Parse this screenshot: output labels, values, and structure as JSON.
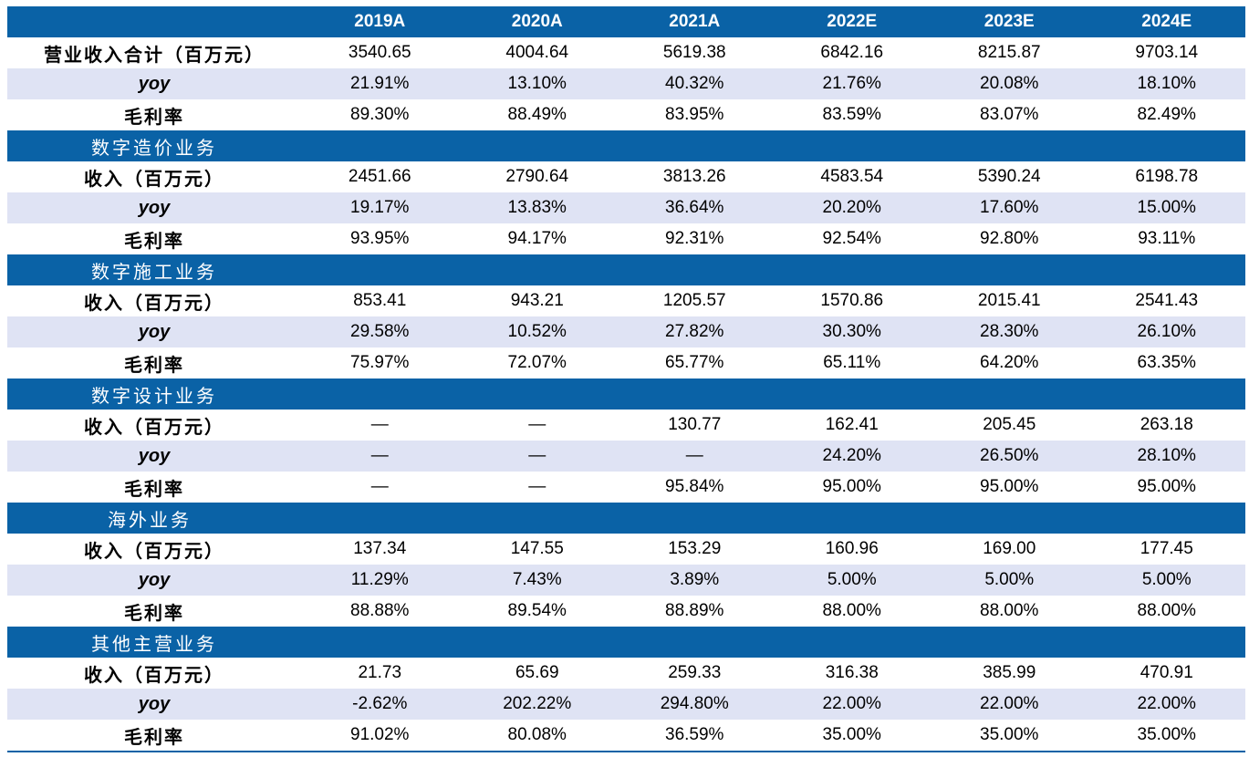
{
  "header": {
    "columns": [
      "",
      "2019A",
      "2020A",
      "2021A",
      "2022E",
      "2023E",
      "2024E"
    ]
  },
  "total": {
    "rows": [
      {
        "label": "营业收入合计（百万元）",
        "values": [
          "3540.65",
          "4004.64",
          "5619.38",
          "6842.16",
          "8215.87",
          "9703.14"
        ]
      },
      {
        "label": "yoy",
        "values": [
          "21.91%",
          "13.10%",
          "40.32%",
          "21.76%",
          "20.08%",
          "18.10%"
        ]
      },
      {
        "label": "毛利率",
        "values": [
          "89.30%",
          "88.49%",
          "83.95%",
          "83.59%",
          "83.07%",
          "82.49%"
        ]
      }
    ]
  },
  "sections": [
    {
      "title": "数字造价业务",
      "rows": [
        {
          "label": "收入（百万元）",
          "values": [
            "2451.66",
            "2790.64",
            "3813.26",
            "4583.54",
            "5390.24",
            "6198.78"
          ]
        },
        {
          "label": "yoy",
          "values": [
            "19.17%",
            "13.83%",
            "36.64%",
            "20.20%",
            "17.60%",
            "15.00%"
          ]
        },
        {
          "label": "毛利率",
          "values": [
            "93.95%",
            "94.17%",
            "92.31%",
            "92.54%",
            "92.80%",
            "93.11%"
          ]
        }
      ]
    },
    {
      "title": "数字施工业务",
      "rows": [
        {
          "label": "收入（百万元）",
          "values": [
            "853.41",
            "943.21",
            "1205.57",
            "1570.86",
            "2015.41",
            "2541.43"
          ]
        },
        {
          "label": "yoy",
          "values": [
            "29.58%",
            "10.52%",
            "27.82%",
            "30.30%",
            "28.30%",
            "26.10%"
          ]
        },
        {
          "label": "毛利率",
          "values": [
            "75.97%",
            "72.07%",
            "65.77%",
            "65.11%",
            "64.20%",
            "63.35%"
          ]
        }
      ]
    },
    {
      "title": "数字设计业务",
      "rows": [
        {
          "label": "收入（百万元）",
          "values": [
            "—",
            "—",
            "130.77",
            "162.41",
            "205.45",
            "263.18"
          ]
        },
        {
          "label": "yoy",
          "values": [
            "—",
            "—",
            "—",
            "24.20%",
            "26.50%",
            "28.10%"
          ]
        },
        {
          "label": "毛利率",
          "values": [
            "—",
            "—",
            "95.84%",
            "95.00%",
            "95.00%",
            "95.00%"
          ]
        }
      ]
    },
    {
      "title": "海外业务",
      "rows": [
        {
          "label": "收入（百万元）",
          "values": [
            "137.34",
            "147.55",
            "153.29",
            "160.96",
            "169.00",
            "177.45"
          ]
        },
        {
          "label": "yoy",
          "values": [
            "11.29%",
            "7.43%",
            "3.89%",
            "5.00%",
            "5.00%",
            "5.00%"
          ]
        },
        {
          "label": "毛利率",
          "values": [
            "88.88%",
            "89.54%",
            "88.89%",
            "88.00%",
            "88.00%",
            "88.00%"
          ]
        }
      ]
    },
    {
      "title": "其他主营业务",
      "rows": [
        {
          "label": "收入（百万元）",
          "values": [
            "21.73",
            "65.69",
            "259.33",
            "316.38",
            "385.99",
            "470.91"
          ]
        },
        {
          "label": "yoy",
          "values": [
            "-2.62%",
            "202.22%",
            "294.80%",
            "22.00%",
            "22.00%",
            "22.00%"
          ]
        },
        {
          "label": "毛利率",
          "values": [
            "91.02%",
            "80.08%",
            "36.59%",
            "35.00%",
            "35.00%",
            "35.00%"
          ]
        }
      ]
    }
  ],
  "colors": {
    "header_bg": "#0a62a6",
    "shade_row": "#dfe3f4",
    "text": "#000000"
  }
}
